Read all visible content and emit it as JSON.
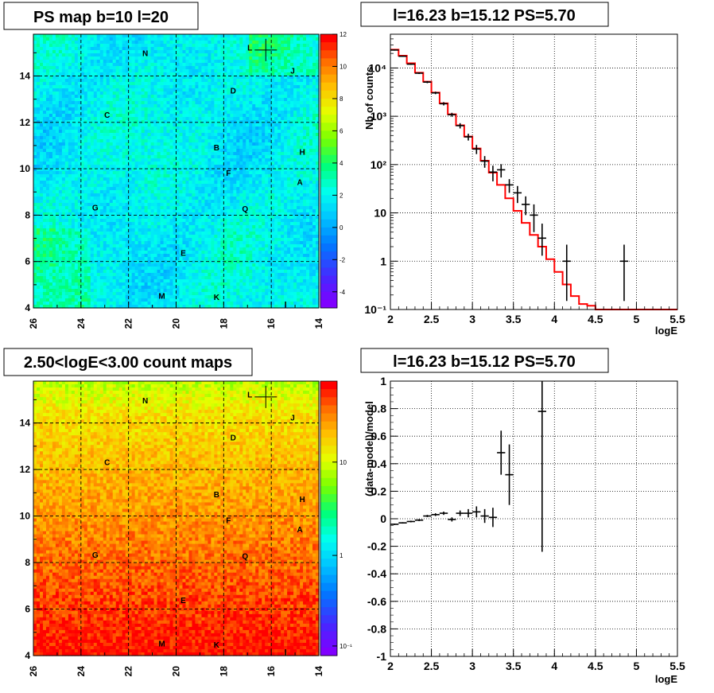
{
  "sources": [
    {
      "label": "N",
      "l": 21.3,
      "b": 14.85
    },
    {
      "label": "L",
      "l": 16.9,
      "b": 15.1
    },
    {
      "label": "J",
      "l": 15.1,
      "b": 14.1
    },
    {
      "label": "D",
      "l": 17.6,
      "b": 13.25
    },
    {
      "label": "C",
      "l": 22.9,
      "b": 12.2
    },
    {
      "label": "B",
      "l": 18.3,
      "b": 10.8
    },
    {
      "label": "H",
      "l": 14.7,
      "b": 10.6
    },
    {
      "label": "F",
      "l": 17.8,
      "b": 9.7
    },
    {
      "label": "A",
      "l": 14.8,
      "b": 9.3
    },
    {
      "label": "G",
      "l": 23.4,
      "b": 8.2
    },
    {
      "label": "Q",
      "l": 17.1,
      "b": 8.15
    },
    {
      "label": "E",
      "l": 19.7,
      "b": 6.25
    },
    {
      "label": "M",
      "l": 20.6,
      "b": 4.4
    },
    {
      "label": "K",
      "l": 18.3,
      "b": 4.35
    }
  ],
  "chart_data": [
    {
      "type": "heatmap",
      "title": "PS map b=10 l=20",
      "x_ticks": [
        "26",
        "24",
        "22",
        "20",
        "18",
        "16",
        "14"
      ],
      "y_ticks": [
        "4",
        "6",
        "8",
        "10",
        "12",
        "14"
      ],
      "xlim": [
        26,
        14
      ],
      "ylim": [
        4,
        15.8
      ],
      "colorbar_ticks": [
        "12",
        "10",
        "8",
        "6",
        "4",
        "2",
        "0",
        "-2",
        "-4"
      ],
      "zlim": [
        -5,
        12
      ],
      "marker": {
        "l": 16.23,
        "b": 15.12
      },
      "grid": true
    },
    {
      "type": "line",
      "title": "l=16.23 b=15.12 PS=5.70",
      "xlabel": "logE",
      "ylabel": "Nb of counts",
      "x_ticks": [
        "2",
        "2.5",
        "3",
        "3.5",
        "4",
        "4.5",
        "5",
        "5.5"
      ],
      "y_ticks": [
        "10⁴",
        "10³",
        "10²",
        "10",
        "1",
        "10⁻¹"
      ],
      "xlim": [
        2,
        5.5
      ],
      "ylim": [
        0.1,
        50000
      ],
      "y_scale": "log",
      "grid": true,
      "series": [
        {
          "color": "#ff0000",
          "style": "step",
          "bin_width": 0.1,
          "x": [
            2.0,
            2.1,
            2.2,
            2.3,
            2.4,
            2.5,
            2.6,
            2.7,
            2.8,
            2.9,
            3.0,
            3.1,
            3.2,
            3.3,
            3.4,
            3.5,
            3.6,
            3.7,
            3.8,
            3.9,
            4.0,
            4.1,
            4.2,
            4.3,
            4.4,
            4.5,
            4.6,
            4.7,
            4.8,
            4.9,
            5.0,
            5.1,
            5.2,
            5.3,
            5.4
          ],
          "y": [
            24000,
            18000,
            12500,
            8000,
            5200,
            3100,
            1850,
            1100,
            650,
            380,
            215,
            120,
            68,
            38,
            20,
            11,
            6.2,
            3.5,
            2.0,
            1.1,
            0.6,
            0.33,
            0.19,
            0.13,
            0.12,
            0.1,
            0.1,
            0.1,
            0.1,
            0.1,
            0.1,
            0.1,
            0.1,
            0.1,
            0.1
          ]
        },
        {
          "color": "#000000",
          "style": "errorbar",
          "x": [
            2.05,
            2.15,
            2.25,
            2.35,
            2.45,
            2.55,
            2.65,
            2.75,
            2.85,
            2.95,
            3.05,
            3.15,
            3.25,
            3.35,
            3.45,
            3.55,
            3.65,
            3.75,
            3.85,
            4.15,
            4.85
          ],
          "y": [
            23500,
            17500,
            12000,
            7800,
            5100,
            3050,
            1820,
            1080,
            640,
            375,
            210,
            118,
            70,
            78,
            38,
            26,
            15,
            9,
            3,
            1,
            1
          ],
          "err_lo": [
            600,
            500,
            400,
            300,
            250,
            180,
            140,
            100,
            80,
            60,
            45,
            32,
            25,
            24,
            12,
            10,
            6,
            5,
            1.7,
            0.85,
            0.85
          ],
          "err_hi": [
            600,
            500,
            400,
            300,
            250,
            180,
            140,
            100,
            80,
            60,
            45,
            32,
            25,
            24,
            12,
            10,
            7,
            6,
            3,
            1.2,
            1.2
          ]
        }
      ]
    },
    {
      "type": "heatmap",
      "title": "2.50<logE<3.00 count maps",
      "x_ticks": [
        "26",
        "24",
        "22",
        "20",
        "18",
        "16",
        "14"
      ],
      "y_ticks": [
        "4",
        "6",
        "8",
        "10",
        "12",
        "14"
      ],
      "xlim": [
        26,
        14
      ],
      "ylim": [
        4,
        15.8
      ],
      "colorbar_ticks": [
        "10",
        "1",
        "10⁻¹"
      ],
      "z_scale": "log",
      "marker": {
        "l": 16.23,
        "b": 15.12
      },
      "grid": true
    },
    {
      "type": "scatter",
      "title": "l=16.23 b=15.12 PS=5.70",
      "xlabel": "logE",
      "ylabel": "(data-model)/model",
      "x_ticks": [
        "2",
        "2.5",
        "3",
        "3.5",
        "4",
        "4.5",
        "5",
        "5.5"
      ],
      "y_ticks": [
        "1",
        "0.8",
        "0.6",
        "0.4",
        "0.2",
        "0",
        "-0.2",
        "-0.4",
        "-0.6",
        "-0.8",
        "-1"
      ],
      "xlim": [
        2,
        5.5
      ],
      "ylim": [
        -1,
        1
      ],
      "grid": true,
      "series": [
        {
          "color": "#000000",
          "style": "errorbar",
          "x": [
            2.05,
            2.15,
            2.25,
            2.35,
            2.45,
            2.55,
            2.65,
            2.75,
            2.85,
            2.95,
            3.05,
            3.15,
            3.25,
            3.35,
            3.45,
            3.85
          ],
          "y": [
            -0.04,
            -0.03,
            -0.02,
            -0.01,
            0.02,
            0.03,
            0.04,
            -0.005,
            0.04,
            0.04,
            0.05,
            0.02,
            0.01,
            0.48,
            0.32,
            0.78
          ],
          "err": [
            0.005,
            0.005,
            0.006,
            0.007,
            0.008,
            0.01,
            0.012,
            0.015,
            0.02,
            0.03,
            0.04,
            0.05,
            0.07,
            0.16,
            0.22,
            1.02
          ]
        }
      ]
    }
  ]
}
